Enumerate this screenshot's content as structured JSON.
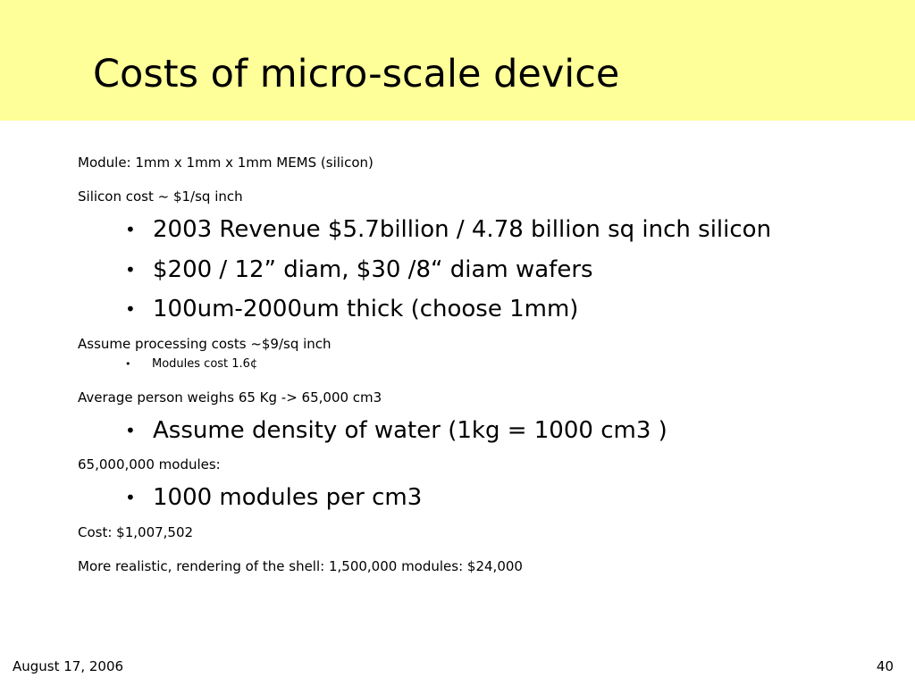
{
  "slide": {
    "title": "Costs of micro-scale device",
    "background_color": "#ffffff",
    "title_band_color": "#ffff99",
    "bullet_symbol": "•",
    "body": {
      "module_line": "Module: 1mm x 1mm x 1mm MEMS (silicon)",
      "silicon_cost_line": "Silicon cost ~ $1/sq inch",
      "silicon_bullets": [
        "2003 Revenue $5.7billion / 4.78 billion sq inch silicon",
        "$200 / 12” diam, $30 /8“ diam wafers",
        "100um-2000um thick (choose 1mm)"
      ],
      "processing_line": "Assume processing costs ~$9/sq inch",
      "processing_bullets": [
        "Modules cost 1.6¢"
      ],
      "person_line": "Average person weighs 65 Kg -> 65,000 cm3",
      "person_bullets": [
        "Assume density of water (1kg = 1000 cm3 )"
      ],
      "modules_line": "65,000,000 modules:",
      "modules_bullets": [
        "1000 modules per cm3"
      ],
      "cost_line": "Cost: $1,007,502",
      "realistic_line": "More realistic, rendering of the shell: 1,500,000 modules: $24,000"
    },
    "footer": {
      "date": "August 17, 2006",
      "page_number": "40"
    }
  }
}
